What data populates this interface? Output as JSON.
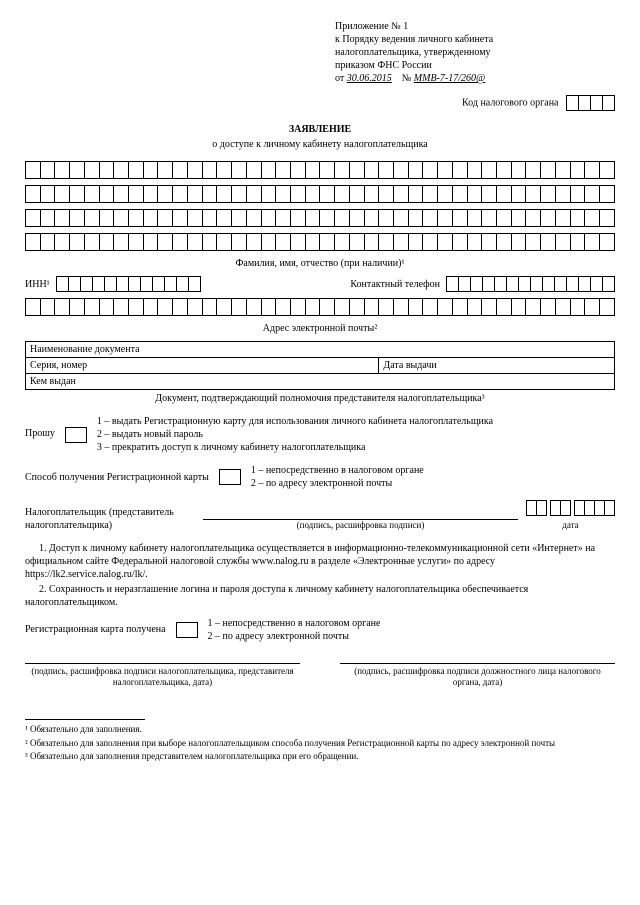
{
  "header": {
    "line1": "Приложение № 1",
    "line2": "к Порядку ведения личного кабинета",
    "line3": "налогоплательщика, утвержденному",
    "line4": "приказом ФНС России",
    "from_label": "от",
    "date_hand": "30.06.2015",
    "number_label": "№",
    "number_hand": "ММВ-7-17/260@"
  },
  "kod_label": "Код налогового органа",
  "kod_cells": 4,
  "title": "ЗАЯВЛЕНИЕ",
  "subtitle": "о доступе к личному кабинету налогоплательщика",
  "name_rows": 4,
  "name_cells_per_row": 40,
  "fio_caption": "Фамилия, имя, отчество (при наличии)¹",
  "inn_label": "ИНН¹",
  "inn_cells": 12,
  "phone_label": "Контактный телефон",
  "phone_cells": 14,
  "email_cells": 40,
  "email_caption": "Адрес электронной почты²",
  "doc_table": {
    "r1c1": "Наименование документа",
    "r2c1": "Серия, номер",
    "r2c2": "Дата выдачи",
    "r3c1": "Кем выдан"
  },
  "doc_caption": "Документ, подтверждающий полномочия представителя налогоплательщика³",
  "request": {
    "label": "Прошу",
    "opt1": "1 – выдать Регистрационную карту для использования личного кабинета налогоплательщика",
    "opt2": "2 – выдать новый пароль",
    "opt3": "3 – прекратить доступ к личному кабинету налогоплательщика"
  },
  "method": {
    "label": "Способ получения Регистрационной карты",
    "opt1": "1 – непосредственно в налоговом органе",
    "opt2": "2 – по адресу электронной почты"
  },
  "signer_label1": "Налогоплательщик (представитель",
  "signer_label2": "налогоплательщика)",
  "sig_caption": "(подпись, расшифровка подписи)",
  "date_caption": "дата",
  "notes": {
    "n1": "1. Доступ к личному кабинету налогоплательщика осуществляется в информационно-телекоммуникационной сети «Интернет» на официальном сайте Федеральной налоговой службы www.nalog.ru в разделе «Электронные услуги» по адресу https://lk2.service.nalog.ru/lk/.",
    "n2": "2. Сохранность и неразглашение логина и пароля доступа к личному кабинету налогоплательщика обеспечивается налогоплательщиком."
  },
  "received": {
    "label": "Регистрационная карта получена",
    "opt1": "1 – непосредственно в налоговом органе",
    "opt2": "2 – по адресу электронной почты"
  },
  "footer_sig": {
    "left": "(подпись, расшифровка подписи налогоплательщика, представителя налогоплательщика, дата)",
    "right": "(подпись, расшифровка подписи должностного лица налогового органа, дата)"
  },
  "footnotes": {
    "f1": "¹ Обязательно для заполнения.",
    "f2": "² Обязательно для заполнения при выборе налогоплательщиком способа получения Регистрационной карты по адресу электронной почты",
    "f3": "³ Обязательно для заполнения представителем налогоплательщика при его обращении."
  }
}
